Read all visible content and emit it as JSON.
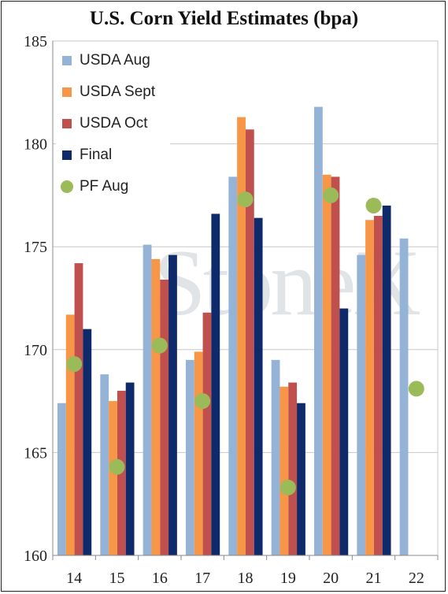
{
  "chart_data": {
    "type": "bar",
    "title": "U.S. Corn Yield Estimates (bpa)",
    "xlabel": "",
    "ylabel": "",
    "categories": [
      "14",
      "15",
      "16",
      "17",
      "18",
      "19",
      "20",
      "21",
      "22"
    ],
    "ylim": [
      160,
      185
    ],
    "yticks": [
      160,
      165,
      170,
      175,
      180,
      185
    ],
    "grid": true,
    "legend_position": "top-left",
    "series": [
      {
        "name": "USDA Aug",
        "kind": "bar",
        "color": "#95b3d7",
        "values": [
          167.4,
          168.8,
          175.1,
          169.5,
          178.4,
          169.5,
          181.8,
          174.6,
          175.4
        ]
      },
      {
        "name": "USDA Sept",
        "kind": "bar",
        "color": "#f79646",
        "values": [
          171.7,
          167.5,
          174.4,
          169.9,
          181.3,
          168.2,
          178.5,
          176.3,
          null
        ]
      },
      {
        "name": "USDA Oct",
        "kind": "bar",
        "color": "#c0504d",
        "values": [
          174.2,
          168.0,
          173.4,
          171.8,
          180.7,
          168.4,
          178.4,
          176.5,
          null
        ]
      },
      {
        "name": "Final",
        "kind": "bar",
        "color": "#0f2a6b",
        "values": [
          171.0,
          168.4,
          174.6,
          176.6,
          176.4,
          167.4,
          172.0,
          177.0,
          null
        ]
      },
      {
        "name": "PF Aug",
        "kind": "point",
        "color": "#9bbb59",
        "values": [
          169.3,
          164.3,
          170.2,
          167.5,
          177.3,
          163.3,
          177.5,
          177.0,
          168.1
        ]
      }
    ]
  },
  "watermark": "StoneX"
}
